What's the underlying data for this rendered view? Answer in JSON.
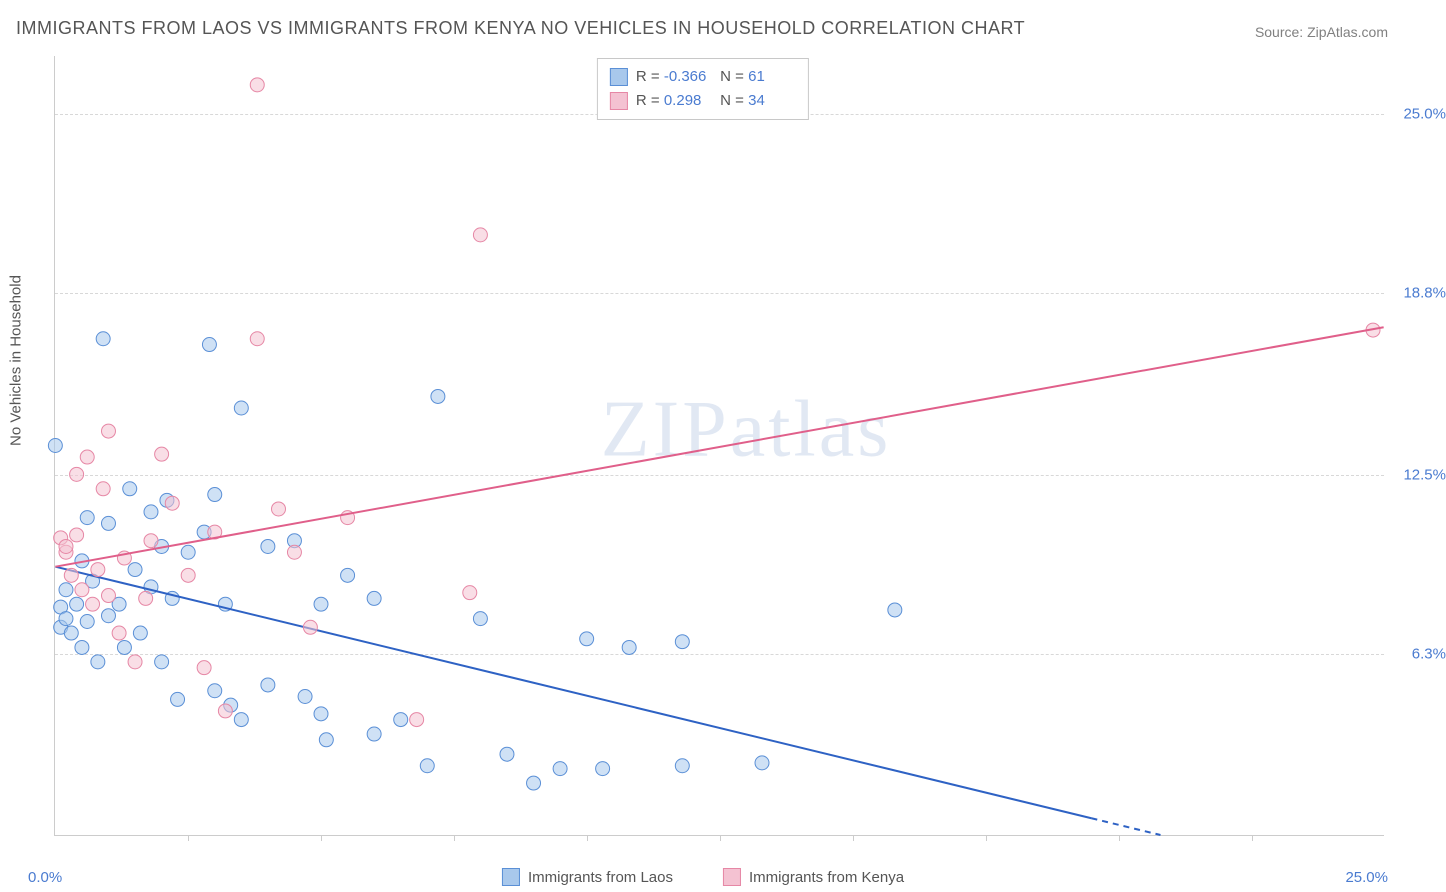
{
  "title": "IMMIGRANTS FROM LAOS VS IMMIGRANTS FROM KENYA NO VEHICLES IN HOUSEHOLD CORRELATION CHART",
  "source": "Source: ZipAtlas.com",
  "watermark": {
    "bold": "ZIP",
    "light": "atlas"
  },
  "y_axis_title": "No Vehicles in Household",
  "chart": {
    "type": "scatter",
    "xlim": [
      0,
      25
    ],
    "ylim": [
      0,
      27
    ],
    "y_ticks": [
      {
        "value": 6.3,
        "label": "6.3%"
      },
      {
        "value": 12.5,
        "label": "12.5%"
      },
      {
        "value": 18.8,
        "label": "18.8%"
      },
      {
        "value": 25.0,
        "label": "25.0%"
      }
    ],
    "x_tick_values": [
      2.5,
      5,
      7.5,
      10,
      12.5,
      15,
      17.5,
      20,
      22.5
    ],
    "x_label_min": "0.0%",
    "x_label_max": "25.0%",
    "background_color": "#ffffff",
    "grid_color": "#d8d8d8",
    "axis_color": "#cccccc",
    "tick_label_color": "#4a7bd0",
    "text_color": "#555555",
    "marker_radius": 7,
    "marker_opacity": 0.55,
    "line_width": 2,
    "series": [
      {
        "name": "Immigrants from Laos",
        "color_stroke": "#5a8fd6",
        "color_fill": "#a8c8ec",
        "line_color": "#2e62c4",
        "R": "-0.366",
        "N": "61",
        "trend": {
          "x1": 0,
          "y1": 9.3,
          "x2": 20.8,
          "y2": 0.0,
          "dash_from_x": 19.5
        },
        "points": [
          [
            0.0,
            13.5
          ],
          [
            0.1,
            7.9
          ],
          [
            0.1,
            7.2
          ],
          [
            0.2,
            7.5
          ],
          [
            0.2,
            8.5
          ],
          [
            0.3,
            7.0
          ],
          [
            0.4,
            8.0
          ],
          [
            0.5,
            9.5
          ],
          [
            0.5,
            6.5
          ],
          [
            0.6,
            11.0
          ],
          [
            0.6,
            7.4
          ],
          [
            0.7,
            8.8
          ],
          [
            0.8,
            6.0
          ],
          [
            0.9,
            17.2
          ],
          [
            1.0,
            10.8
          ],
          [
            1.0,
            7.6
          ],
          [
            1.2,
            8.0
          ],
          [
            1.3,
            6.5
          ],
          [
            1.4,
            12.0
          ],
          [
            1.5,
            9.2
          ],
          [
            1.6,
            7.0
          ],
          [
            1.8,
            11.2
          ],
          [
            1.8,
            8.6
          ],
          [
            2.0,
            10.0
          ],
          [
            2.0,
            6.0
          ],
          [
            2.1,
            11.6
          ],
          [
            2.2,
            8.2
          ],
          [
            2.3,
            4.7
          ],
          [
            2.5,
            9.8
          ],
          [
            2.8,
            10.5
          ],
          [
            2.9,
            17.0
          ],
          [
            3.0,
            5.0
          ],
          [
            3.0,
            11.8
          ],
          [
            3.2,
            8.0
          ],
          [
            3.3,
            4.5
          ],
          [
            3.5,
            14.8
          ],
          [
            3.5,
            4.0
          ],
          [
            4.0,
            10.0
          ],
          [
            4.0,
            5.2
          ],
          [
            4.5,
            10.2
          ],
          [
            4.7,
            4.8
          ],
          [
            5.0,
            8.0
          ],
          [
            5.0,
            4.2
          ],
          [
            5.1,
            3.3
          ],
          [
            5.5,
            9.0
          ],
          [
            6.0,
            8.2
          ],
          [
            6.0,
            3.5
          ],
          [
            6.5,
            4.0
          ],
          [
            7.0,
            2.4
          ],
          [
            7.2,
            15.2
          ],
          [
            8.0,
            7.5
          ],
          [
            8.5,
            2.8
          ],
          [
            9.0,
            1.8
          ],
          [
            9.5,
            2.3
          ],
          [
            10.0,
            6.8
          ],
          [
            10.3,
            2.3
          ],
          [
            10.8,
            6.5
          ],
          [
            11.8,
            6.7
          ],
          [
            11.8,
            2.4
          ],
          [
            13.3,
            2.5
          ],
          [
            15.8,
            7.8
          ]
        ]
      },
      {
        "name": "Immigrants from Kenya",
        "color_stroke": "#e687a5",
        "color_fill": "#f4c2d2",
        "line_color": "#e05f8a",
        "R": "0.298",
        "N": "34",
        "trend": {
          "x1": 0,
          "y1": 9.3,
          "x2": 25,
          "y2": 17.6
        },
        "points": [
          [
            0.1,
            10.3
          ],
          [
            0.2,
            9.8
          ],
          [
            0.2,
            10.0
          ],
          [
            0.3,
            9.0
          ],
          [
            0.4,
            10.4
          ],
          [
            0.4,
            12.5
          ],
          [
            0.5,
            8.5
          ],
          [
            0.6,
            13.1
          ],
          [
            0.7,
            8.0
          ],
          [
            0.8,
            9.2
          ],
          [
            0.9,
            12.0
          ],
          [
            1.0,
            8.3
          ],
          [
            1.0,
            14.0
          ],
          [
            1.2,
            7.0
          ],
          [
            1.3,
            9.6
          ],
          [
            1.5,
            6.0
          ],
          [
            1.7,
            8.2
          ],
          [
            1.8,
            10.2
          ],
          [
            2.0,
            13.2
          ],
          [
            2.2,
            11.5
          ],
          [
            2.5,
            9.0
          ],
          [
            2.8,
            5.8
          ],
          [
            3.0,
            10.5
          ],
          [
            3.2,
            4.3
          ],
          [
            3.8,
            26.0
          ],
          [
            3.8,
            17.2
          ],
          [
            4.2,
            11.3
          ],
          [
            4.5,
            9.8
          ],
          [
            4.8,
            7.2
          ],
          [
            5.5,
            11.0
          ],
          [
            6.8,
            4.0
          ],
          [
            7.8,
            8.4
          ],
          [
            8.0,
            20.8
          ],
          [
            24.8,
            17.5
          ]
        ]
      }
    ]
  },
  "bottom_legend": [
    {
      "swatch_fill": "#a8c8ec",
      "swatch_stroke": "#5a8fd6",
      "label": "Immigrants from Laos"
    },
    {
      "swatch_fill": "#f4c2d2",
      "swatch_stroke": "#e687a5",
      "label": "Immigrants from Kenya"
    }
  ]
}
